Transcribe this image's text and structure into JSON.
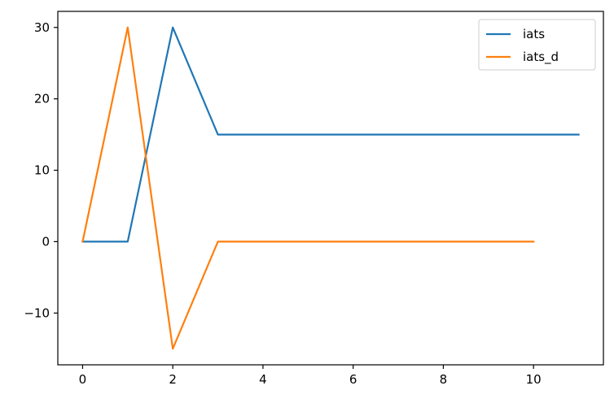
{
  "chart_data": {
    "type": "line",
    "title": "",
    "xlabel": "",
    "ylabel": "",
    "xlim": [
      -0.55,
      11.55
    ],
    "ylim": [
      -17.25,
      32.25
    ],
    "xticks": [
      0,
      2,
      4,
      6,
      8,
      10
    ],
    "yticks": [
      -10,
      0,
      10,
      20,
      30
    ],
    "ytick_labels": [
      "−10",
      "0",
      "10",
      "20",
      "30"
    ],
    "grid": false,
    "legend_position": "top-right",
    "series": [
      {
        "name": "iats",
        "color": "#1f77b4",
        "x": [
          0,
          1,
          2,
          3,
          4,
          5,
          6,
          7,
          8,
          9,
          10,
          11
        ],
        "values": [
          0,
          0,
          30,
          15,
          15,
          15,
          15,
          15,
          15,
          15,
          15,
          15
        ]
      },
      {
        "name": "iats_d",
        "color": "#ff7f0e",
        "x": [
          0,
          1,
          2,
          3,
          4,
          5,
          6,
          7,
          8,
          9,
          10
        ],
        "values": [
          0,
          30,
          -15,
          0,
          0,
          0,
          0,
          0,
          0,
          0,
          0
        ]
      }
    ]
  }
}
